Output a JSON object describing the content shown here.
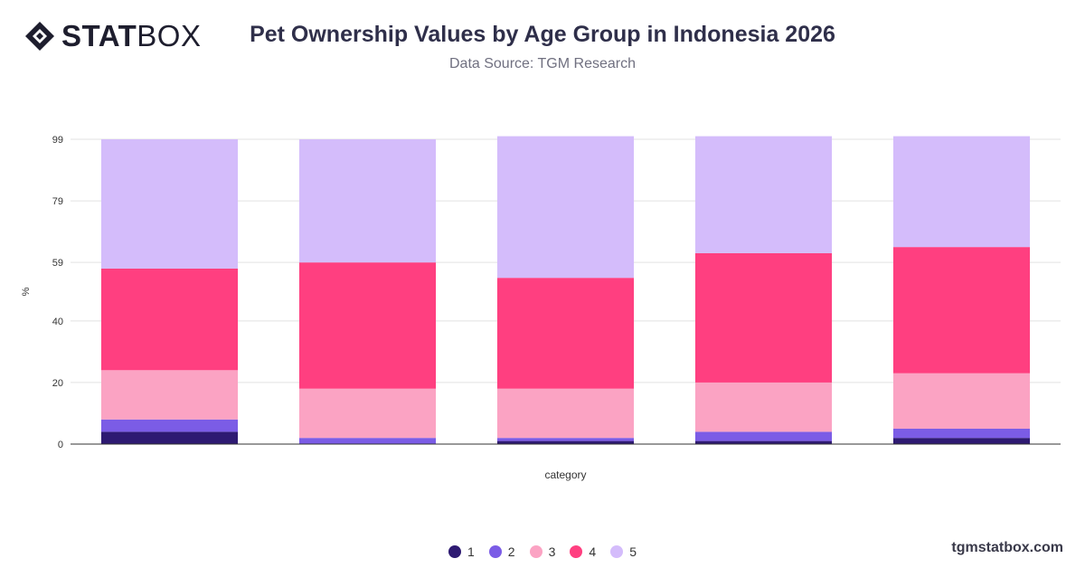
{
  "brand": {
    "logo_bold": "STAT",
    "logo_light": "BOX"
  },
  "title": "Pet Ownership Values by Age Group in Indonesia 2026",
  "subtitle": "Data Source: TGM Research",
  "footer": "tgmstatbox.com",
  "chart_data": {
    "type": "bar",
    "stacked": true,
    "xlabel": "category",
    "ylabel": "%",
    "ylim": [
      0,
      99
    ],
    "yticks": [
      0,
      20,
      40,
      59,
      79,
      99
    ],
    "grid": true,
    "legend_position": "bottom",
    "categories": [
      "",
      "",
      "",
      "",
      ""
    ],
    "series": [
      {
        "name": "1",
        "color": "#2e1a72",
        "values": [
          4,
          0,
          1,
          1,
          2
        ]
      },
      {
        "name": "2",
        "color": "#7b5ce6",
        "values": [
          4,
          2,
          1,
          3,
          3
        ]
      },
      {
        "name": "3",
        "color": "#fba3c3",
        "values": [
          16,
          16,
          16,
          16,
          18
        ]
      },
      {
        "name": "4",
        "color": "#ff3f80",
        "values": [
          33,
          41,
          36,
          42,
          41
        ]
      },
      {
        "name": "5",
        "color": "#d4bcfb",
        "values": [
          42,
          40,
          46,
          38,
          36
        ]
      }
    ]
  }
}
